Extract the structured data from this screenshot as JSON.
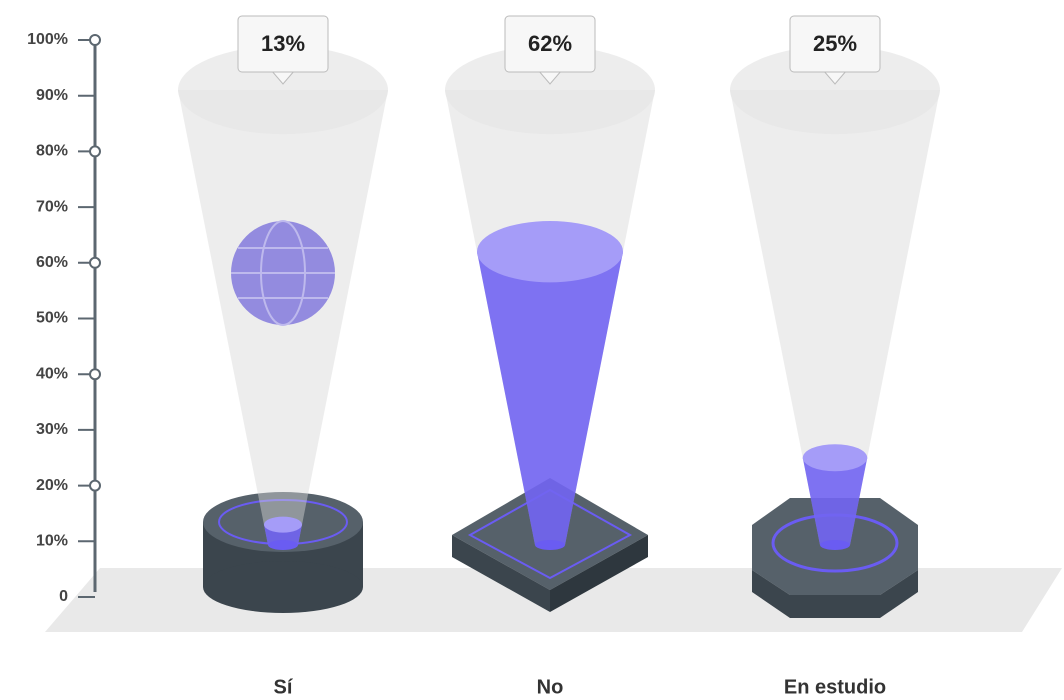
{
  "chart_data": {
    "type": "cone",
    "categories": [
      "Sí",
      "No",
      "En estudio"
    ],
    "values": [
      13,
      62,
      25
    ],
    "value_labels": [
      "13%",
      "62%",
      "25%"
    ],
    "color": "#6a5cf2",
    "ylim": [
      0,
      100
    ],
    "yticks": [
      0,
      {
        "value": 10,
        "label": "10%"
      },
      {
        "value": 20,
        "label": "20%"
      },
      {
        "value": 30,
        "label": "30%"
      },
      {
        "value": 40,
        "label": "40%"
      },
      {
        "value": 50,
        "label": "50%"
      },
      {
        "value": 60,
        "label": "60%"
      },
      {
        "value": 70,
        "label": "70%"
      },
      {
        "value": 80,
        "label": "80%"
      },
      {
        "value": 90,
        "label": "90%"
      },
      {
        "value": 100,
        "label": "100%"
      }
    ]
  }
}
